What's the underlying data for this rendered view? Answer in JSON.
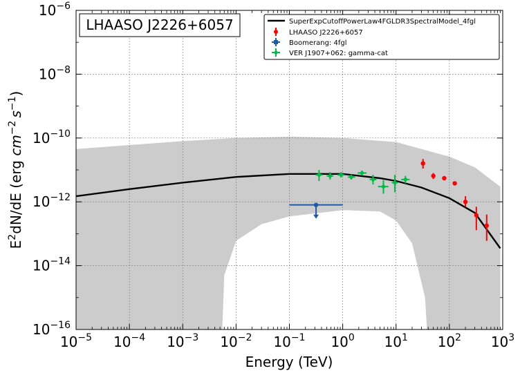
{
  "chart_data": {
    "type": "scatter",
    "title": "LHAASO J2226+6057",
    "xlabel": "Energy (TeV)",
    "ylabel_parts": {
      "pre": "E",
      "pre_sup": "2",
      "mid": "dN/dE (erg ",
      "cm": "cm",
      "cm_sup": "−2",
      "s": "s",
      "s_sup": "−1",
      "post": ")"
    },
    "xscale": "log",
    "yscale": "log",
    "xlim_exp": [
      -5,
      3
    ],
    "ylim_exp": [
      -16,
      -6
    ],
    "x_tick_exponents": [
      -5,
      -4,
      -3,
      -2,
      -1,
      0,
      1,
      2,
      3
    ],
    "y_tick_exponents": [
      -16,
      -14,
      -12,
      -10,
      -8,
      -6
    ],
    "x_tick_labels": [
      "10",
      "10",
      "10",
      "10",
      "10",
      "10",
      "10",
      "10",
      "10"
    ],
    "x_tick_sups": [
      "−5",
      "−4",
      "−3",
      "−2",
      "−1",
      "0",
      "1",
      "2",
      "3"
    ],
    "y_tick_labels": [
      "10",
      "10",
      "10",
      "10",
      "10",
      "10"
    ],
    "y_tick_sups": [
      "−16",
      "−14",
      "−12",
      "−10",
      "−8",
      "−6"
    ],
    "grid": true,
    "legend_position": "top-right",
    "series": [
      {
        "name": "SuperExpCutoffPowerLaw4FGLDR3SpectralModel_4fgl",
        "kind": "model",
        "color": "#000000",
        "points": [
          [
            1e-05,
            1.5e-12
          ],
          [
            0.0001,
            2.5e-12
          ],
          [
            0.001,
            4e-12
          ],
          [
            0.01,
            6e-12
          ],
          [
            0.1,
            7.5e-12
          ],
          [
            1,
            7.5e-12
          ],
          [
            5,
            5.5e-12
          ],
          [
            10,
            4.5e-12
          ],
          [
            30,
            2.8e-12
          ],
          [
            100,
            1.3e-12
          ],
          [
            300,
            4.5e-13
          ],
          [
            900,
            3.5e-14
          ]
        ],
        "band_upper": [
          [
            1e-05,
            4.5e-11
          ],
          [
            0.0001,
            6e-11
          ],
          [
            0.001,
            8e-11
          ],
          [
            0.01,
            1e-10
          ],
          [
            0.1,
            1.1e-10
          ],
          [
            1,
            1e-10
          ],
          [
            10,
            7.5e-11
          ],
          [
            30,
            4.5e-11
          ],
          [
            100,
            2.6e-11
          ],
          [
            300,
            1.2e-11
          ],
          [
            900,
            3e-12
          ]
        ],
        "band_lower": [
          [
            1e-05,
            1e-16
          ],
          [
            0.0055,
            1e-16
          ],
          [
            0.006,
            5e-15
          ],
          [
            0.01,
            6e-14
          ],
          [
            0.03,
            2e-13
          ],
          [
            0.1,
            3.5e-13
          ],
          [
            1,
            5.5e-13
          ],
          [
            5,
            5e-13
          ],
          [
            10,
            2.6e-13
          ],
          [
            20,
            5e-14
          ],
          [
            35,
            1e-15
          ],
          [
            38,
            1e-16
          ],
          [
            900,
            1e-16
          ]
        ]
      },
      {
        "name": "LHAASO J2226+6057",
        "kind": "points",
        "color": "#ff0000",
        "points": [
          {
            "x": 32,
            "y": 1.6e-11,
            "ylo": 1.1e-11,
            "yhi": 2.2e-11
          },
          {
            "x": 50,
            "y": 6.5e-12,
            "ylo": 5.2e-12,
            "yhi": 8e-12
          },
          {
            "x": 80,
            "y": 5.5e-12,
            "ylo": 4.8e-12,
            "yhi": 6.3e-12
          },
          {
            "x": 126,
            "y": 3.8e-12,
            "ylo": 3.3e-12,
            "yhi": 4.3e-12
          },
          {
            "x": 200,
            "y": 1e-12,
            "ylo": 7e-13,
            "yhi": 1.5e-12
          },
          {
            "x": 320,
            "y": 3.8e-13,
            "ylo": 1.3e-13,
            "yhi": 7e-13
          },
          {
            "x": 500,
            "y": 1.8e-13,
            "ylo": 6e-14,
            "yhi": 4e-13
          }
        ]
      },
      {
        "name": "Boomerang: 4fgl",
        "kind": "upper_limit",
        "color": "#1f5aa6",
        "points": [
          {
            "x": 0.316,
            "y": 8e-13,
            "xlo": 0.1,
            "xhi": 1.0
          }
        ]
      },
      {
        "name": "VER J1907+062: gamma-cat",
        "kind": "points",
        "color": "#00bb44",
        "points": [
          {
            "x": 0.36,
            "y": 7e-12,
            "xlo": 0.31,
            "xhi": 0.42,
            "ylo": 4.5e-12,
            "yhi": 1e-11
          },
          {
            "x": 0.58,
            "y": 6.5e-12,
            "xlo": 0.5,
            "xhi": 0.67,
            "ylo": 5e-12,
            "yhi": 8.5e-12
          },
          {
            "x": 0.93,
            "y": 7e-12,
            "xlo": 0.8,
            "xhi": 1.08,
            "ylo": 5.8e-12,
            "yhi": 8.5e-12
          },
          {
            "x": 1.45,
            "y": 6e-12,
            "xlo": 1.25,
            "xhi": 1.7,
            "ylo": 5e-12,
            "yhi": 7e-12
          },
          {
            "x": 2.3,
            "y": 8e-12,
            "xlo": 1.9,
            "xhi": 2.8,
            "ylo": 7e-12,
            "yhi": 9e-12
          },
          {
            "x": 3.7,
            "y": 5e-12,
            "xlo": 3.2,
            "xhi": 4.3,
            "ylo": 3.5e-12,
            "yhi": 7e-12
          },
          {
            "x": 5.8,
            "y": 3e-12,
            "xlo": 4.6,
            "xhi": 7.2,
            "ylo": 1.8e-12,
            "yhi": 4.8e-12
          },
          {
            "x": 9.5,
            "y": 4e-12,
            "xlo": 8.3,
            "xhi": 10.8,
            "ylo": 2e-12,
            "yhi": 7e-12
          },
          {
            "x": 15,
            "y": 5e-12,
            "xlo": 12.5,
            "xhi": 18,
            "ylo": 3.8e-12,
            "yhi": 6.5e-12
          }
        ]
      }
    ]
  }
}
